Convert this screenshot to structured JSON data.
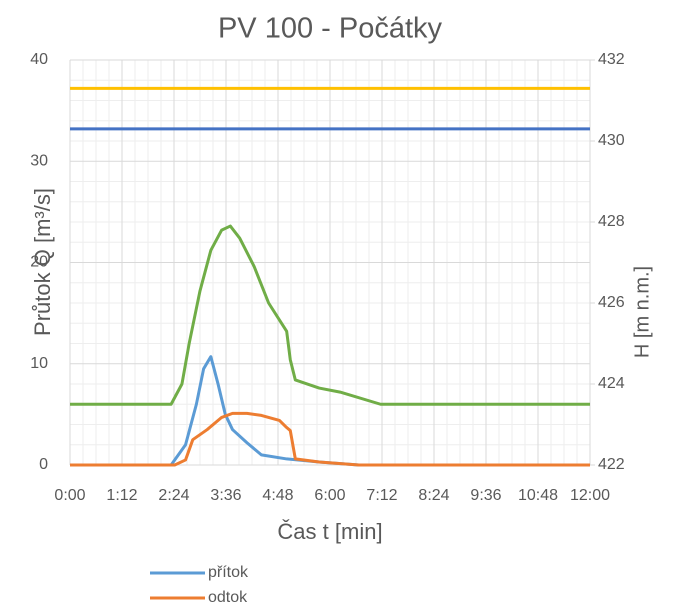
{
  "chart_data": {
    "type": "line",
    "title": "PV 100 - Počátky",
    "x_label": "Čas t [min]",
    "y_label": "Průtok Q [m³/s]",
    "y2_label": "H  [m n.m.]",
    "xlim": [
      0,
      720
    ],
    "xticks": [
      {
        "value": 0,
        "label": "0:00"
      },
      {
        "value": 72,
        "label": "1:12"
      },
      {
        "value": 144,
        "label": "2:24"
      },
      {
        "value": 216,
        "label": "3:36"
      },
      {
        "value": 288,
        "label": "4:48"
      },
      {
        "value": 360,
        "label": "6:00"
      },
      {
        "value": 432,
        "label": "7:12"
      },
      {
        "value": 504,
        "label": "8:24"
      },
      {
        "value": 576,
        "label": "9:36"
      },
      {
        "value": 648,
        "label": "10:48"
      },
      {
        "value": 720,
        "label": "12:00"
      }
    ],
    "ylim": [
      0,
      40
    ],
    "yticks": [
      0,
      10,
      20,
      30,
      40
    ],
    "y2lim": [
      422,
      432
    ],
    "y2ticks": [
      422,
      424,
      426,
      428,
      430,
      432
    ],
    "grid": true,
    "minor_grid": true,
    "legend": "bottom",
    "series": [
      {
        "name": "přítok",
        "color": "#5b9bd5",
        "x": [
          0,
          140,
          160,
          175,
          185,
          195,
          205,
          215,
          225,
          245,
          265,
          300,
          345,
          400,
          720
        ],
        "values": [
          0,
          0,
          2,
          6,
          9.5,
          10.7,
          8,
          5,
          3.5,
          2.2,
          1,
          0.6,
          0.3,
          0,
          0
        ]
      },
      {
        "name": "odtok",
        "color": "#ed7d31",
        "x": [
          0,
          145,
          160,
          170,
          190,
          210,
          225,
          245,
          265,
          290,
          300,
          305,
          312,
          345,
          400,
          720
        ],
        "values": [
          0,
          0,
          0.5,
          2.5,
          3.5,
          4.7,
          5.1,
          5.1,
          4.9,
          4.4,
          3.7,
          3.4,
          0.6,
          0.3,
          0,
          0
        ]
      },
      {
        "color": "#70ad47",
        "axis": "y2",
        "x": [
          0,
          140,
          155,
          165,
          180,
          195,
          210,
          222,
          235,
          255,
          275,
          300,
          305,
          312,
          345,
          374,
          430,
          720
        ],
        "values": [
          423.5,
          423.5,
          424,
          425,
          426.3,
          427.3,
          427.8,
          427.9,
          427.6,
          426.9,
          426,
          425.3,
          424.6,
          424.1,
          423.9,
          423.8,
          423.5,
          423.5
        ]
      },
      {
        "color": "#ffc000",
        "axis": "y2",
        "x": [
          0,
          720
        ],
        "values": [
          431.3,
          431.3
        ]
      },
      {
        "color": "#4472c4",
        "axis": "y2",
        "x": [
          0,
          720
        ],
        "values": [
          430.3,
          430.3
        ]
      }
    ]
  }
}
